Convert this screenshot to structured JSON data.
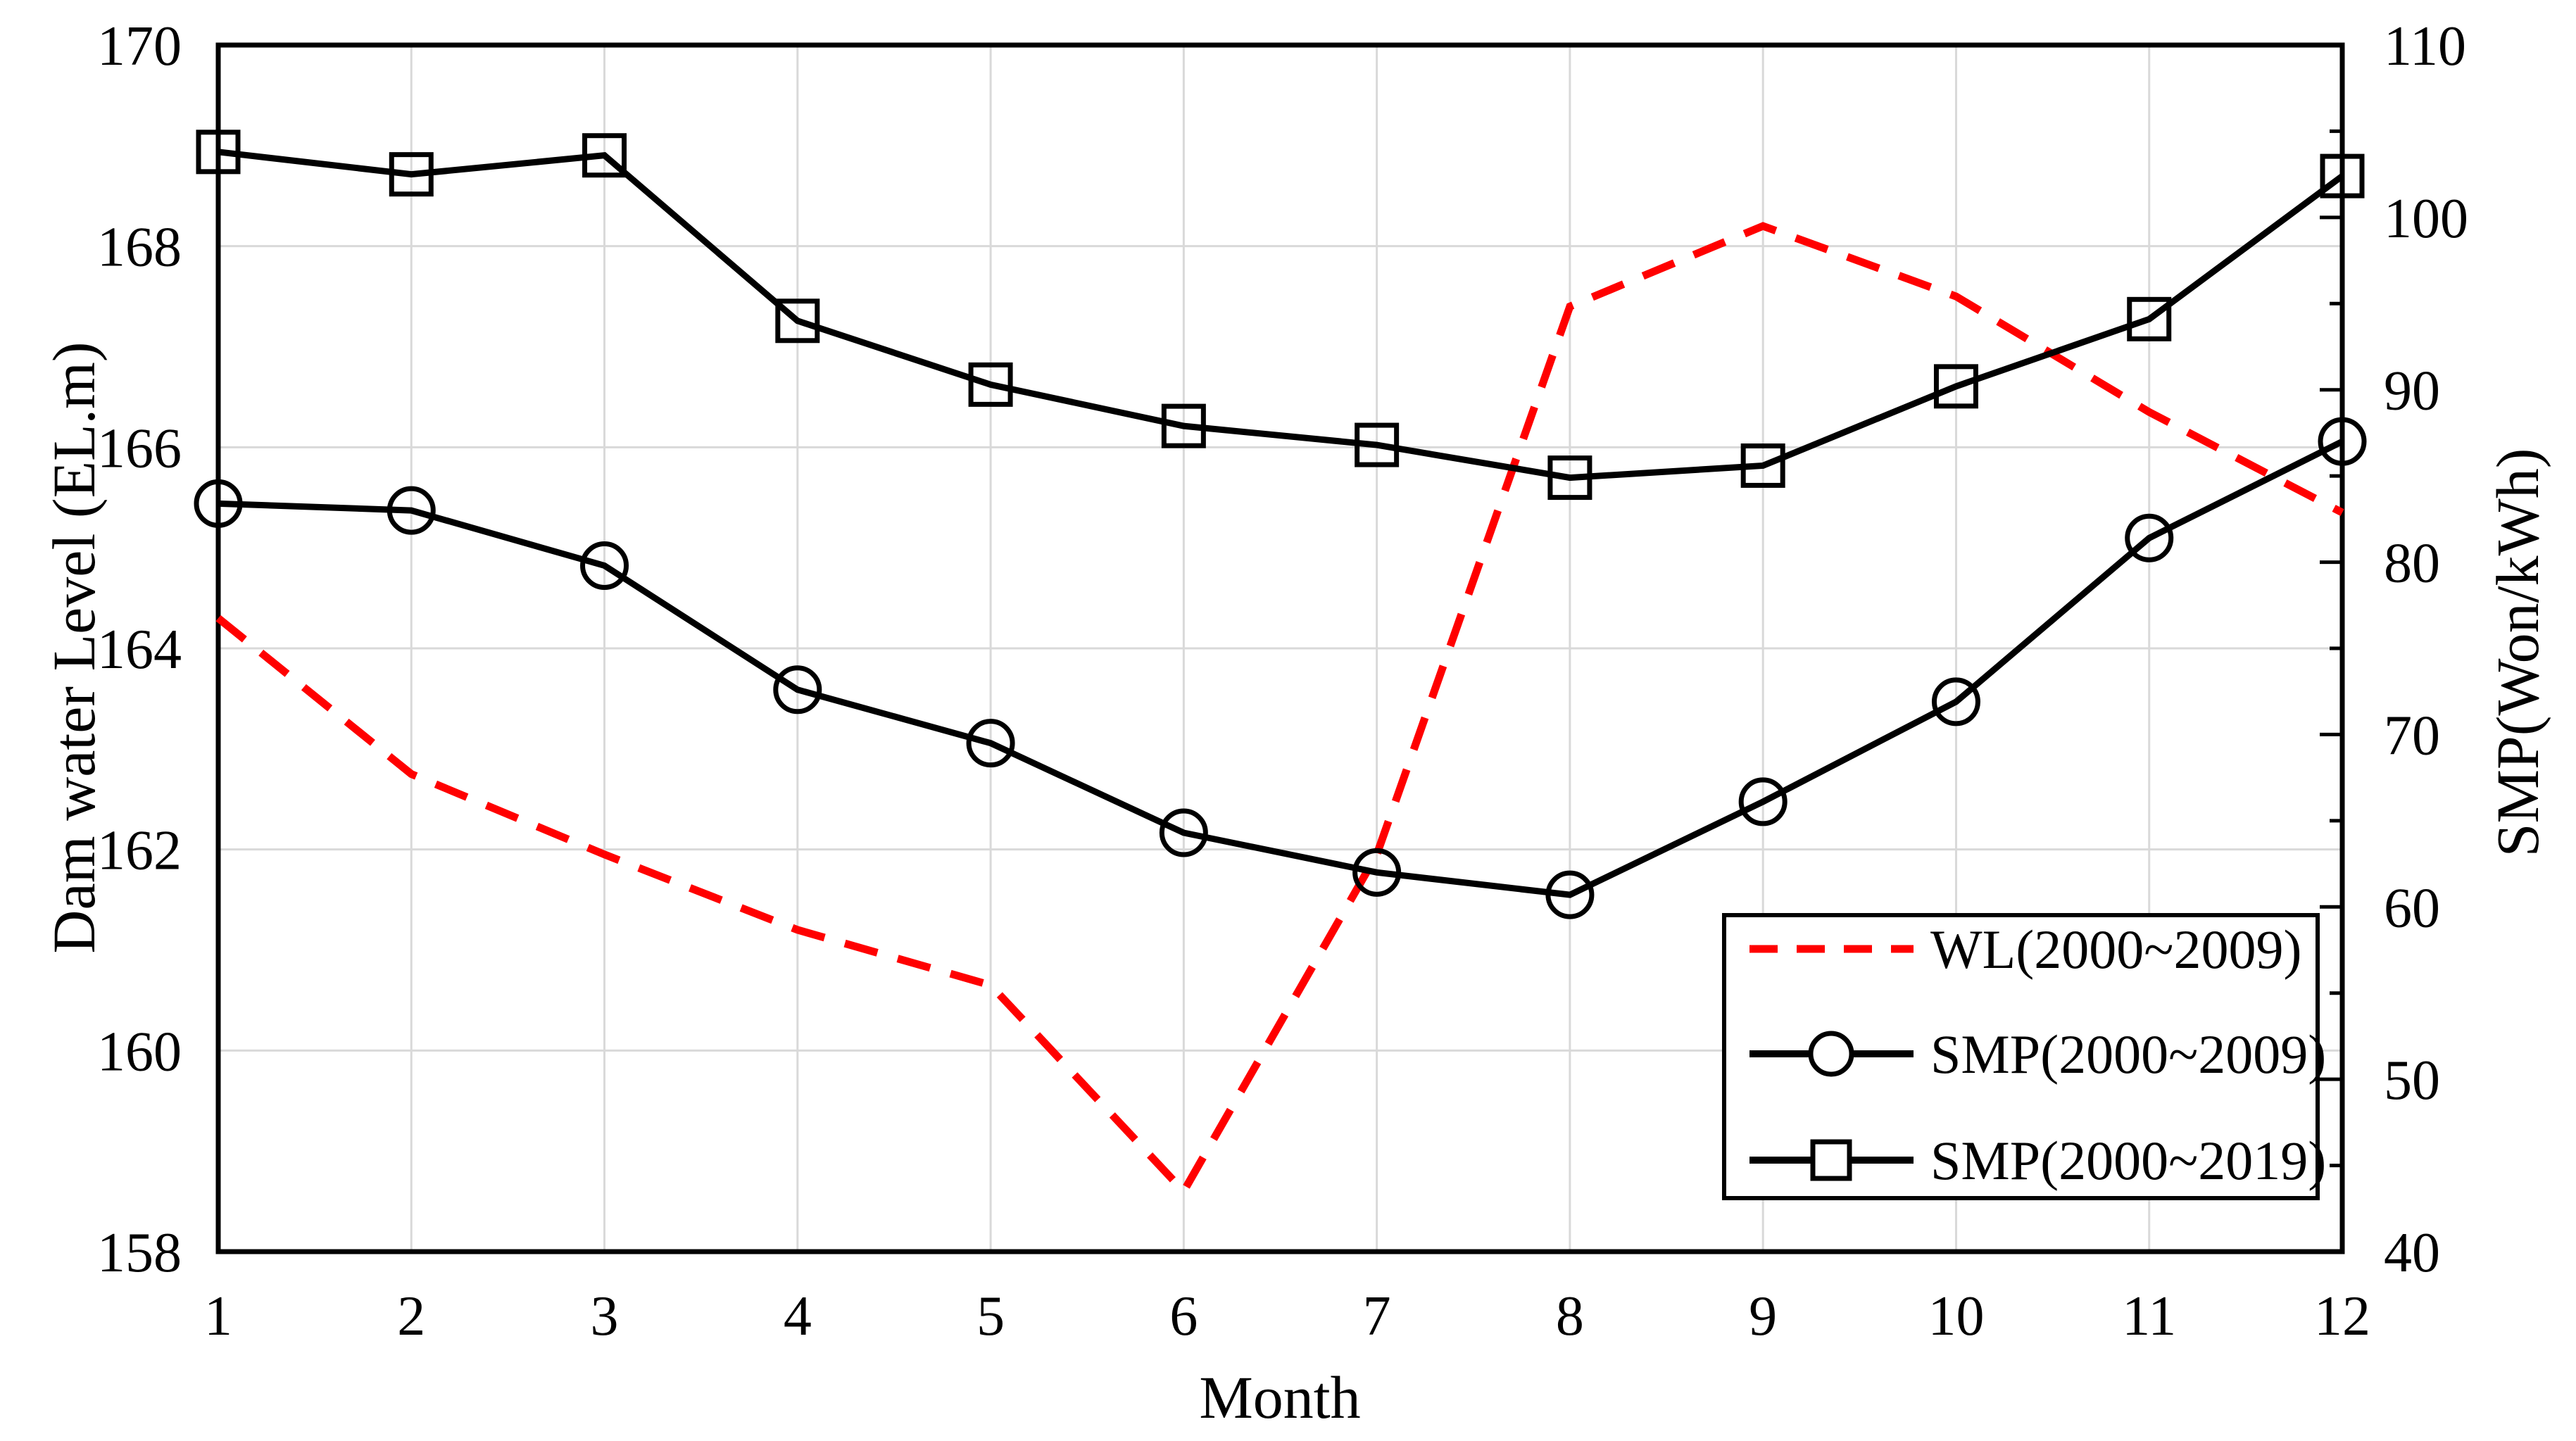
{
  "chart_data": {
    "type": "line",
    "title": "",
    "x": [
      1,
      2,
      3,
      4,
      5,
      6,
      7,
      8,
      9,
      10,
      11,
      12
    ],
    "xlabel": "Month",
    "left_axis": {
      "label": "Dam water Level (EL.m)",
      "min": 158,
      "max": 170,
      "tick_step": 2,
      "ticks": [
        158,
        160,
        162,
        164,
        166,
        168,
        170
      ],
      "gridline_values": [
        160,
        162,
        164,
        166,
        168
      ]
    },
    "right_axis": {
      "label": "SMP(Won/kWh)",
      "min": 40,
      "max": 110,
      "tick_step": 10,
      "minor_tick_step": 5,
      "ticks": [
        40,
        50,
        60,
        70,
        80,
        90,
        100,
        110
      ],
      "major_tick_values": [
        50,
        60,
        70,
        80,
        90,
        100
      ],
      "minor_tick_values": [
        45,
        55,
        65,
        75,
        85,
        95,
        105
      ]
    },
    "grid": true,
    "series": [
      {
        "name": "WL(2000~2009)",
        "axis": "left",
        "line": "dashed",
        "color": "#ff0000",
        "marker": "none",
        "values": [
          164.3,
          162.75,
          161.95,
          161.2,
          160.65,
          158.6,
          161.95,
          167.4,
          168.2,
          167.5,
          166.35,
          165.35
        ]
      },
      {
        "name": "SMP(2000~2009)",
        "axis": "right",
        "line": "solid",
        "color": "#000000",
        "marker": "circle",
        "values": [
          83.4,
          83.0,
          79.8,
          72.6,
          69.5,
          64.3,
          62.0,
          60.7,
          66.1,
          71.9,
          81.4,
          87.0
        ]
      },
      {
        "name": "SMP(2000~2019)",
        "axis": "right",
        "line": "solid",
        "color": "#000000",
        "marker": "square",
        "values": [
          103.8,
          102.5,
          103.6,
          94.0,
          90.3,
          87.9,
          86.8,
          84.9,
          85.6,
          90.2,
          94.1,
          102.4
        ]
      }
    ],
    "legend": {
      "position": "inside bottom-right",
      "entries": [
        "WL(2000~2009)",
        "SMP(2000~2009)",
        "SMP(2000~2019)"
      ]
    },
    "colors": {
      "background": "#ffffff",
      "grid": "#d9d9d9",
      "axis": "#000000",
      "text": "#000000",
      "wl_red": "#ff0000"
    }
  }
}
